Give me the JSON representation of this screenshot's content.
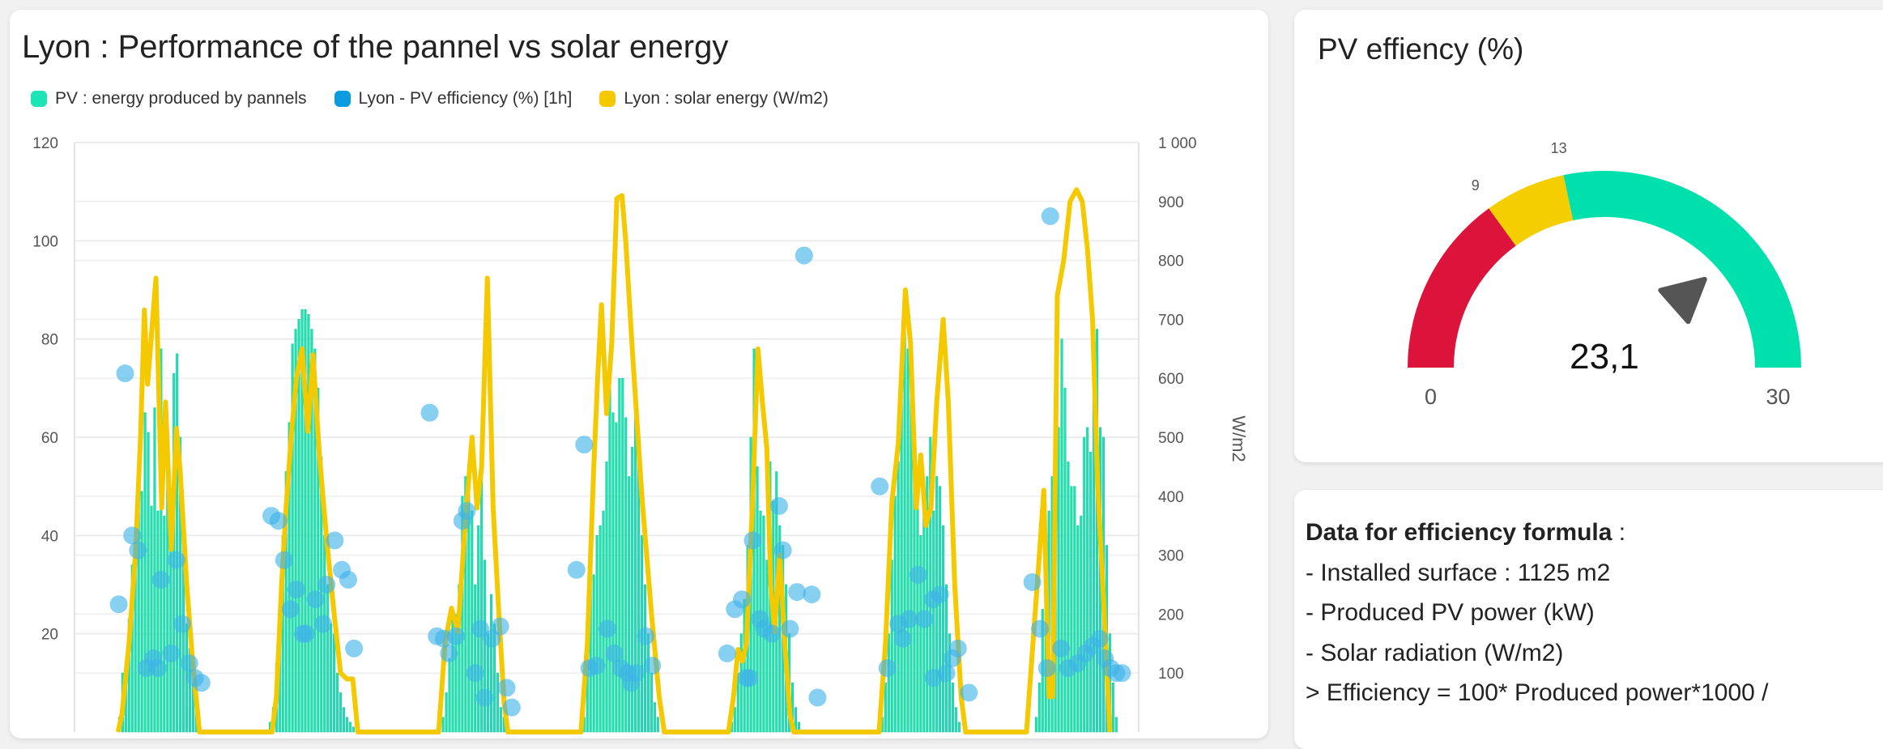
{
  "chart_card": {
    "title": "Lyon : Performance of the pannel vs solar energy",
    "legend": [
      {
        "label": "PV : energy produced by pannels",
        "color": "#1de4b4"
      },
      {
        "label": "Lyon - PV efficiency (%) [1h]",
        "color": "#0b9be0"
      },
      {
        "label": "Lyon : solar energy (W/m2)",
        "color": "#f5c900"
      }
    ]
  },
  "chart_data": {
    "type": "bar+line+scatter",
    "title": "Lyon : Performance of the pannel vs solar energy",
    "x_unit": "hour",
    "xlim": [
      0,
      166
    ],
    "y_left": {
      "range": [
        0,
        120
      ],
      "ticks": [
        "20",
        "40",
        "60",
        "80",
        "100",
        "120"
      ],
      "tick_values": [
        20,
        40,
        60,
        80,
        100,
        120
      ]
    },
    "y_right": {
      "label": "W/m2",
      "range": [
        0,
        1000
      ],
      "ticks": [
        "100",
        "200",
        "300",
        "400",
        "500",
        "600",
        "700",
        "800",
        "900",
        "1 000"
      ],
      "tick_values": [
        100,
        200,
        300,
        400,
        500,
        600,
        700,
        800,
        900,
        1000
      ]
    },
    "grid": true,
    "legend_position": "top-left",
    "series": [
      {
        "name": "PV : energy produced by pannels",
        "type": "bar",
        "axis": "left",
        "color": "#1de4b4",
        "step": 0.5,
        "days": [
          {
            "start": 7.0,
            "values": [
              3,
              12,
              14,
              23,
              34,
              34,
              55,
              49,
              65,
              61,
              46,
              66,
              45,
              78,
              44,
              60,
              48,
              73,
              77,
              60,
              40,
              22,
              17,
              10,
              5,
              2
            ]
          },
          {
            "start": 30.5,
            "values": [
              2,
              5,
              14,
              25,
              40,
              53,
              63,
              79,
              82,
              84,
              86,
              86,
              85,
              82,
              78,
              70,
              56,
              40,
              30,
              22,
              20,
              12,
              8,
              5,
              3,
              2,
              1,
              1
            ]
          },
          {
            "start": 57.5,
            "values": [
              3,
              8,
              15,
              25,
              24,
              30,
              48,
              52,
              55,
              45,
              30,
              42,
              60,
              35,
              20,
              28,
              22,
              12,
              5,
              3,
              2
            ]
          },
          {
            "start": 79.5,
            "values": [
              3,
              15,
              30,
              32,
              40,
              42,
              45,
              55,
              70,
              65,
              63,
              72,
              72,
              64,
              52,
              58,
              65,
              60,
              40,
              30,
              20,
              12,
              6,
              3
            ]
          },
          {
            "start": 102.5,
            "values": [
              2,
              5,
              12,
              20,
              27,
              38,
              60,
              78,
              54,
              45,
              44,
              35,
              55,
              47,
              53,
              42,
              38,
              30,
              20,
              10,
              5,
              2
            ]
          },
          {
            "start": 126.0,
            "values": [
              3,
              10,
              20,
              35,
              48,
              55,
              70,
              85,
              78,
              70,
              62,
              52,
              40,
              48,
              52,
              60,
              45,
              52,
              50,
              42,
              30,
              20,
              10,
              5,
              2
            ]
          },
          {
            "start": 150.0,
            "values": [
              3,
              10,
              25,
              35,
              45,
              52,
              60,
              62,
              80,
              70,
              55,
              50,
              50,
              42,
              44,
              60,
              62,
              57,
              70,
              82,
              62,
              60,
              38,
              20,
              10,
              3
            ]
          }
        ]
      },
      {
        "name": "Lyon - PV efficiency (%) [1h]",
        "type": "scatter",
        "axis": "left",
        "color": "#0b9be0",
        "points": [
          [
            6.9,
            26
          ],
          [
            7.9,
            73
          ],
          [
            9.0,
            40
          ],
          [
            9.9,
            37
          ],
          [
            11.2,
            13
          ],
          [
            12.3,
            15
          ],
          [
            13.0,
            13
          ],
          [
            13.5,
            31
          ],
          [
            15.1,
            16
          ],
          [
            15.9,
            35
          ],
          [
            16.8,
            22
          ],
          [
            17.9,
            14
          ],
          [
            18.8,
            11
          ],
          [
            19.8,
            10
          ],
          [
            30.7,
            44
          ],
          [
            31.8,
            43
          ],
          [
            32.7,
            35
          ],
          [
            33.7,
            25
          ],
          [
            34.6,
            29
          ],
          [
            35.6,
            20
          ],
          [
            36.1,
            20
          ],
          [
            37.6,
            27
          ],
          [
            38.8,
            22
          ],
          [
            39.3,
            30
          ],
          [
            40.6,
            39
          ],
          [
            41.7,
            33
          ],
          [
            42.7,
            31
          ],
          [
            43.6,
            17
          ],
          [
            55.4,
            65
          ],
          [
            56.5,
            19.5
          ],
          [
            57.6,
            19
          ],
          [
            58.4,
            16
          ],
          [
            59.5,
            19.5
          ],
          [
            60.5,
            43
          ],
          [
            61.2,
            45
          ],
          [
            62.5,
            12
          ],
          [
            63.3,
            21
          ],
          [
            64.0,
            7
          ],
          [
            65.1,
            19
          ],
          [
            66.4,
            21.5
          ],
          [
            67.4,
            9
          ],
          [
            68.2,
            5
          ],
          [
            78.3,
            33
          ],
          [
            79.5,
            58.5
          ],
          [
            80.3,
            13
          ],
          [
            81.4,
            13.5
          ],
          [
            83.1,
            21
          ],
          [
            84.2,
            16
          ],
          [
            85.2,
            13
          ],
          [
            86.3,
            12
          ],
          [
            86.8,
            10
          ],
          [
            87.6,
            12
          ],
          [
            89.1,
            19.5
          ],
          [
            90.1,
            13.5
          ],
          [
            101.8,
            16
          ],
          [
            103.0,
            25
          ],
          [
            104.1,
            27
          ],
          [
            104.8,
            11
          ],
          [
            105.3,
            11
          ],
          [
            105.8,
            39
          ],
          [
            106.9,
            23
          ],
          [
            107.6,
            21
          ],
          [
            108.8,
            20
          ],
          [
            109.9,
            46
          ],
          [
            110.5,
            37
          ],
          [
            111.6,
            21
          ],
          [
            112.7,
            28.5
          ],
          [
            113.8,
            97
          ],
          [
            115.0,
            28
          ],
          [
            115.9,
            7
          ],
          [
            125.6,
            50
          ],
          [
            126.8,
            13
          ],
          [
            128.5,
            22
          ],
          [
            129.2,
            19
          ],
          [
            130.2,
            23
          ],
          [
            131.6,
            32
          ],
          [
            132.6,
            23
          ],
          [
            133.9,
            27
          ],
          [
            134.0,
            11
          ],
          [
            135.0,
            28
          ],
          [
            136.0,
            12
          ],
          [
            136.9,
            15
          ],
          [
            137.8,
            17
          ],
          [
            139.5,
            8
          ],
          [
            149.4,
            30.5
          ],
          [
            150.6,
            21
          ],
          [
            151.7,
            13
          ],
          [
            152.2,
            105
          ],
          [
            153.9,
            17
          ],
          [
            155.0,
            13
          ],
          [
            156.5,
            14
          ],
          [
            157.7,
            16
          ],
          [
            158.8,
            17.5
          ],
          [
            159.9,
            19
          ],
          [
            160.7,
            15
          ],
          [
            161.6,
            13
          ],
          [
            162.5,
            12
          ],
          [
            163.4,
            12
          ]
        ]
      },
      {
        "name": "Lyon : solar energy (W/m2)",
        "type": "line",
        "axis": "right",
        "color": "#f5c900",
        "points": [
          [
            6.8,
            0
          ],
          [
            7.4,
            30
          ],
          [
            8.5,
            150
          ],
          [
            9.5,
            300
          ],
          [
            10.3,
            500
          ],
          [
            10.9,
            716
          ],
          [
            11.4,
            590
          ],
          [
            12.7,
            770
          ],
          [
            13.6,
            380
          ],
          [
            14.2,
            560
          ],
          [
            15.1,
            310
          ],
          [
            15.9,
            515
          ],
          [
            16.5,
            440
          ],
          [
            17.5,
            250
          ],
          [
            18.5,
            110
          ],
          [
            19.5,
            0
          ],
          [
            30.8,
            0
          ],
          [
            31.5,
            60
          ],
          [
            32.3,
            250
          ],
          [
            33.0,
            380
          ],
          [
            33.8,
            500
          ],
          [
            34.6,
            600
          ],
          [
            35.5,
            650
          ],
          [
            36.4,
            510
          ],
          [
            37.2,
            640
          ],
          [
            38.2,
            470
          ],
          [
            39.3,
            330
          ],
          [
            40.5,
            200
          ],
          [
            41.5,
            100
          ],
          [
            42.5,
            90
          ],
          [
            43.4,
            90
          ],
          [
            44.2,
            0
          ],
          [
            56.8,
            0
          ],
          [
            57.8,
            150
          ],
          [
            58.8,
            210
          ],
          [
            59.8,
            170
          ],
          [
            60.8,
            330
          ],
          [
            62.0,
            500
          ],
          [
            62.8,
            380
          ],
          [
            63.5,
            450
          ],
          [
            64.4,
            770
          ],
          [
            65.3,
            380
          ],
          [
            66.2,
            200
          ],
          [
            67.0,
            50
          ],
          [
            67.6,
            0
          ],
          [
            79.0,
            0
          ],
          [
            80.0,
            150
          ],
          [
            81.0,
            450
          ],
          [
            81.6,
            600
          ],
          [
            82.2,
            725
          ],
          [
            83.0,
            540
          ],
          [
            83.8,
            660
          ],
          [
            84.6,
            905
          ],
          [
            85.4,
            910
          ],
          [
            86.0,
            830
          ],
          [
            87.0,
            650
          ],
          [
            88.5,
            400
          ],
          [
            90.0,
            200
          ],
          [
            91.2,
            60
          ],
          [
            92.0,
            0
          ],
          [
            102.0,
            0
          ],
          [
            102.8,
            60
          ],
          [
            103.5,
            140
          ],
          [
            104.2,
            120
          ],
          [
            104.8,
            150
          ],
          [
            105.8,
            400
          ],
          [
            106.6,
            650
          ],
          [
            107.3,
            560
          ],
          [
            108.0,
            480
          ],
          [
            108.6,
            250
          ],
          [
            109.2,
            170
          ],
          [
            110.0,
            300
          ],
          [
            110.8,
            150
          ],
          [
            111.6,
            30
          ],
          [
            112.2,
            0
          ],
          [
            125.5,
            0
          ],
          [
            126.5,
            150
          ],
          [
            127.5,
            390
          ],
          [
            128.5,
            490
          ],
          [
            129.6,
            750
          ],
          [
            130.4,
            660
          ],
          [
            131.3,
            380
          ],
          [
            132.0,
            470
          ],
          [
            132.8,
            350
          ],
          [
            133.6,
            380
          ],
          [
            134.5,
            560
          ],
          [
            135.5,
            700
          ],
          [
            136.3,
            560
          ],
          [
            137.3,
            250
          ],
          [
            138.3,
            60
          ],
          [
            139.0,
            0
          ],
          [
            148.5,
            0
          ],
          [
            149.5,
            150
          ],
          [
            150.5,
            300
          ],
          [
            151.2,
            410
          ],
          [
            152.0,
            60
          ],
          [
            152.6,
            60
          ],
          [
            153.3,
            740
          ],
          [
            154.3,
            800
          ],
          [
            155.3,
            900
          ],
          [
            156.3,
            920
          ],
          [
            157.2,
            900
          ],
          [
            158.0,
            820
          ],
          [
            158.8,
            700
          ],
          [
            159.6,
            420
          ],
          [
            160.5,
            230
          ],
          [
            161.5,
            0
          ]
        ]
      }
    ]
  },
  "gauge": {
    "title": "PV effiency (%)",
    "value": 23.1,
    "value_label": "23,1",
    "min": 0,
    "max": 30,
    "min_label": "0",
    "max_label": "30",
    "thresholds": [
      {
        "value": 9,
        "label": "9"
      },
      {
        "value": 13,
        "label": "13"
      }
    ],
    "colors": {
      "low": "#dc143c",
      "mid": "#f5ce00",
      "high": "#00e0ad",
      "needle": "#555555"
    }
  },
  "info": {
    "heading": "Data for efficiency formula",
    "heading_suffix": " :",
    "lines": [
      "- Installed surface : 1125 m2",
      "- Produced PV power (kW)",
      "- Solar radiation (W/m2)",
      "> Efficiency = 100* Produced power*1000 /"
    ]
  }
}
